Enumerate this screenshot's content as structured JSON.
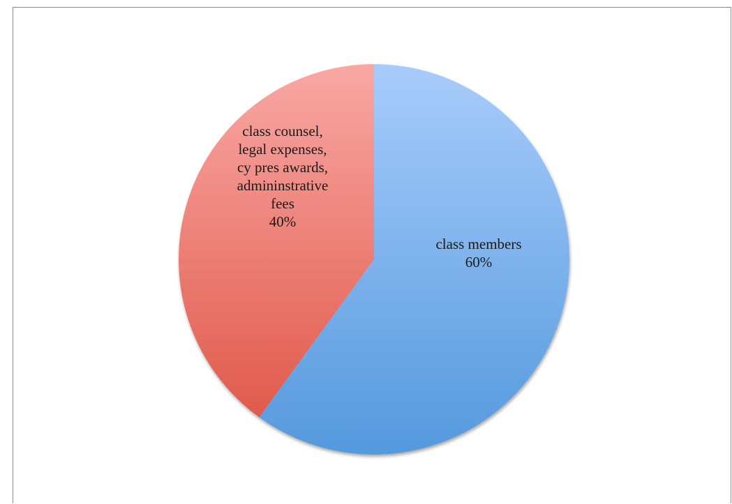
{
  "chart_data": {
    "type": "pie",
    "title": "",
    "legend": "none",
    "slices": [
      {
        "label_lines": [
          "class members"
        ],
        "value": 60,
        "value_label": "60%",
        "color_light": "#a8ccfb",
        "color_dark": "#5499dd"
      },
      {
        "label_lines": [
          "class counsel,",
          "legal expenses,",
          "cy pres awards,",
          "admininstrative",
          "fees"
        ],
        "value": 40,
        "value_label": "40%",
        "color_light": "#f9a8a4",
        "color_dark": "#e05a4c"
      }
    ]
  }
}
